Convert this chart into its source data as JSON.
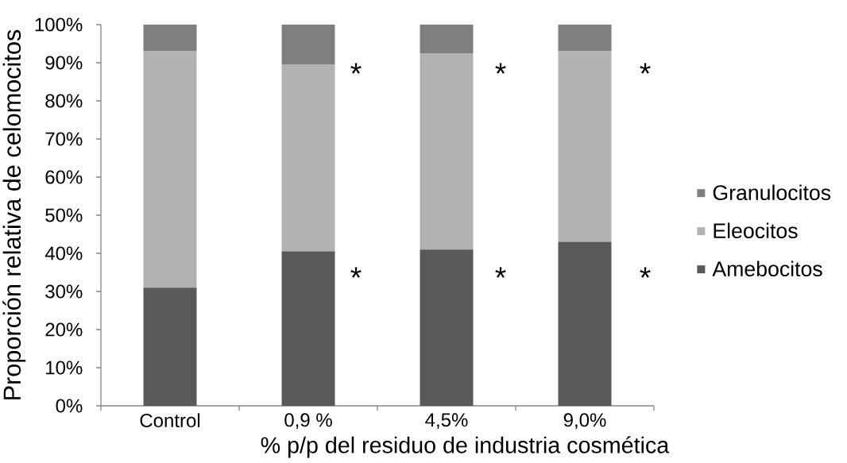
{
  "chart_data": {
    "type": "bar",
    "stacked": true,
    "xlabel": "% p/p del residuo de industria cosmética",
    "ylabel": "Proporción relativa de celomocitos",
    "categories": [
      "Control",
      "0,9 %",
      "4,5%",
      "9,0%"
    ],
    "series": [
      {
        "name": "Amebocitos",
        "color": "#595959",
        "values": [
          31,
          40.5,
          41,
          43
        ]
      },
      {
        "name": "Eleocitos",
        "color": "#b2b2b2",
        "values": [
          62,
          49,
          51.5,
          50
        ]
      },
      {
        "name": "Granulocitos",
        "color": "#7f7f7f",
        "values": [
          7,
          10.5,
          7.5,
          7
        ]
      }
    ],
    "ylim": [
      0,
      100
    ],
    "yticks": [
      {
        "value": 0,
        "label": "0%"
      },
      {
        "value": 10,
        "label": "10%"
      },
      {
        "value": 20,
        "label": "20%"
      },
      {
        "value": 30,
        "label": "30%"
      },
      {
        "value": 40,
        "label": "40%"
      },
      {
        "value": 50,
        "label": "50%"
      },
      {
        "value": 60,
        "label": "60%"
      },
      {
        "value": 70,
        "label": "70%"
      },
      {
        "value": 80,
        "label": "80%"
      },
      {
        "value": 90,
        "label": "90%"
      },
      {
        "value": 100,
        "label": "100%"
      }
    ],
    "legend": "right",
    "annotations": [
      "*",
      "*",
      "*",
      "*",
      "*",
      "*"
    ]
  }
}
